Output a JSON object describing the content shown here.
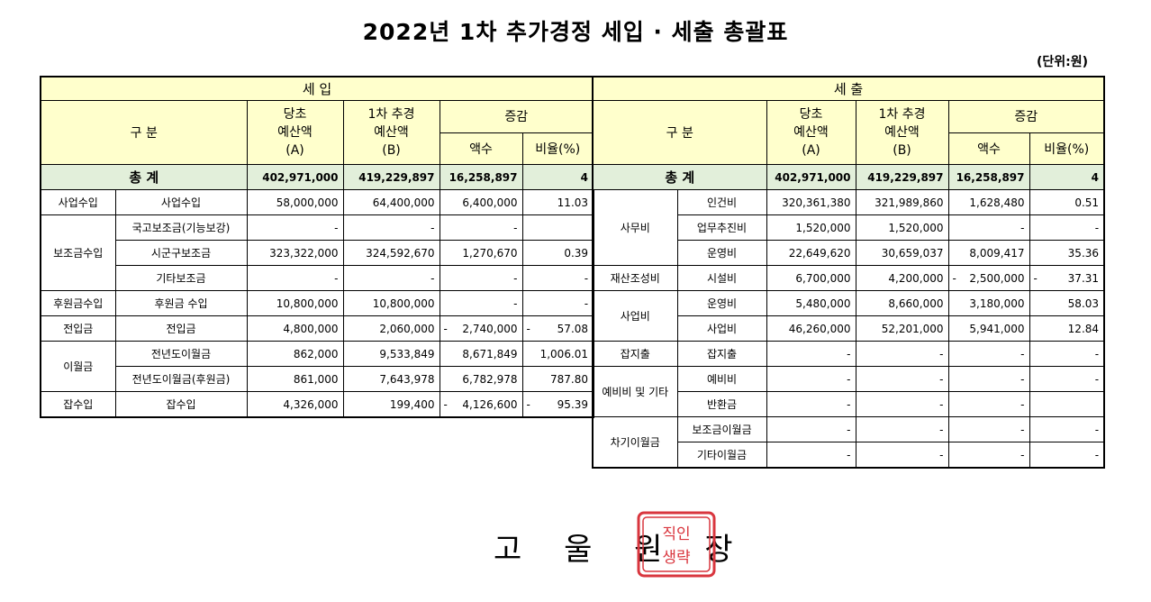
{
  "title": "2022년 1차 추가경정 세입 · 세출 총괄표",
  "unit": "(단위:원)",
  "headers": {
    "revenue": "세    입",
    "expense": "세    출",
    "category": "구        분",
    "budget_a_1": "당초",
    "budget_a_2": "예산액",
    "budget_a_3": "(A)",
    "budget_b_1": "1차 추경",
    "budget_b_2": "예산액",
    "budget_b_3": "(B)",
    "change": "증감",
    "amount": "액수",
    "ratio": "비율(%)",
    "total": "총      계"
  },
  "revenue_total": {
    "a": "402,971,000",
    "b": "419,229,897",
    "amt": "16,258,897",
    "ratio": "4"
  },
  "expense_total": {
    "a": "402,971,000",
    "b": "419,229,897",
    "amt": "16,258,897",
    "ratio": "4"
  },
  "revenue_groups": [
    "사업수입",
    "보조금수입",
    "후원금수입",
    "전입금",
    "이월금",
    "잡수입"
  ],
  "revenue_rows": [
    {
      "item": "사업수입",
      "a": "58,000,000",
      "b": "64,400,000",
      "amt": "6,400,000",
      "ratio": "11.03"
    },
    {
      "item": "국고보조금(기능보강)",
      "a": "-",
      "b": "-",
      "amt": "-",
      "ratio": ""
    },
    {
      "item": "시군구보조금",
      "a": "323,322,000",
      "b": "324,592,670",
      "amt": "1,270,670",
      "ratio": "0.39"
    },
    {
      "item": "기타보조금",
      "a": "-",
      "b": "-",
      "amt": "-",
      "ratio": "-"
    },
    {
      "item": "후원금 수입",
      "a": "10,800,000",
      "b": "10,800,000",
      "amt": "-",
      "ratio": "-"
    },
    {
      "item": "전입금",
      "a": "4,800,000",
      "b": "2,060,000",
      "amt": "2,740,000",
      "ratio": "57.08",
      "neg": "-"
    },
    {
      "item": "전년도이월금",
      "a": "862,000",
      "b": "9,533,849",
      "amt": "8,671,849",
      "ratio": "1,006.01"
    },
    {
      "item": "전년도이월금(후원금)",
      "a": "861,000",
      "b": "7,643,978",
      "amt": "6,782,978",
      "ratio": "787.80"
    },
    {
      "item": "잡수입",
      "a": "4,326,000",
      "b": "199,400",
      "amt": "4,126,600",
      "ratio": "95.39",
      "neg": "-"
    }
  ],
  "expense_groups": [
    "사무비",
    "재산조성비",
    "사업비",
    "잡지출",
    "예비비 및 기타",
    "차기이월금"
  ],
  "expense_rows": [
    {
      "item": "인건비",
      "a": "320,361,380",
      "b": "321,989,860",
      "amt": "1,628,480",
      "ratio": "0.51"
    },
    {
      "item": "업무추진비",
      "a": "1,520,000",
      "b": "1,520,000",
      "amt": "-",
      "ratio": "-"
    },
    {
      "item": "운영비",
      "a": "22,649,620",
      "b": "30,659,037",
      "amt": "8,009,417",
      "ratio": "35.36"
    },
    {
      "item": "시설비",
      "a": "6,700,000",
      "b": "4,200,000",
      "amt": "2,500,000",
      "ratio": "37.31",
      "neg": "-"
    },
    {
      "item": "운영비",
      "a": "5,480,000",
      "b": "8,660,000",
      "amt": "3,180,000",
      "ratio": "58.03"
    },
    {
      "item": "사업비",
      "a": "46,260,000",
      "b": "52,201,000",
      "amt": "5,941,000",
      "ratio": "12.84"
    },
    {
      "item": "잡지출",
      "a": "-",
      "b": "-",
      "amt": "-",
      "ratio": "-"
    },
    {
      "item": "예비비",
      "a": "-",
      "b": "-",
      "amt": "-",
      "ratio": "-"
    },
    {
      "item": "반환금",
      "a": "-",
      "b": "-",
      "amt": "-",
      "ratio": ""
    },
    {
      "item": "보조금이월금",
      "a": "-",
      "b": "-",
      "amt": "-",
      "ratio": "-"
    },
    {
      "item": "기타이월금",
      "a": "-",
      "b": "-",
      "amt": "-",
      "ratio": "-"
    }
  ],
  "footer": "고 울 원 장",
  "seal_text": "직인생략",
  "colors": {
    "header_bg": "#ffffcc",
    "total_bg": "#e2efda",
    "seal": "#d9363e"
  }
}
